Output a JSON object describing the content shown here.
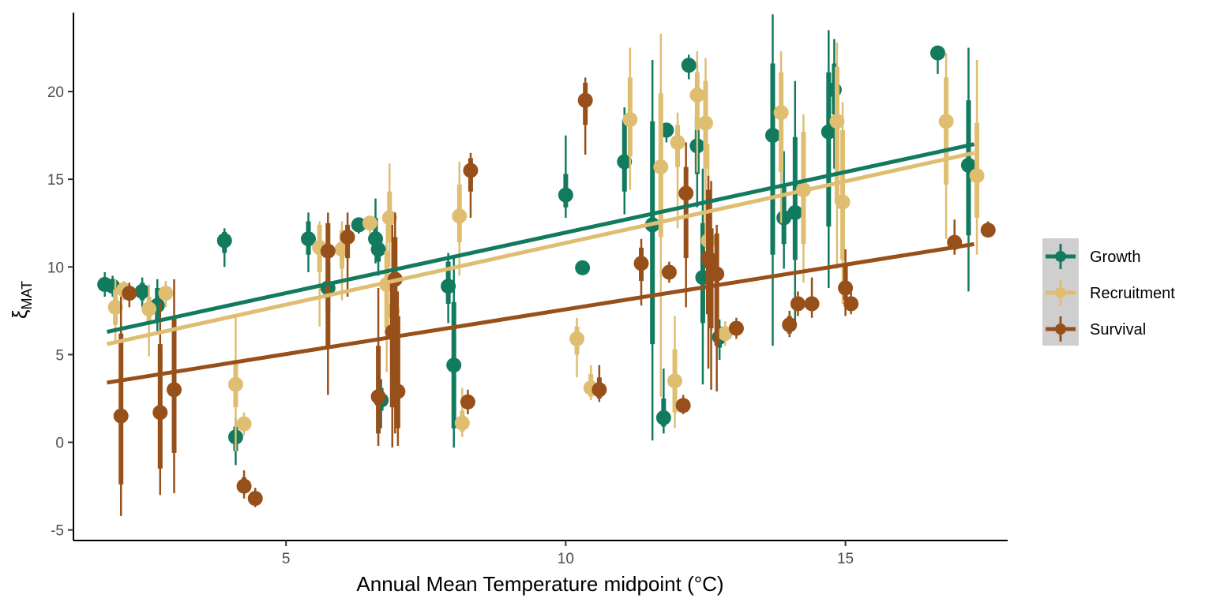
{
  "chart_data": {
    "type": "scatter",
    "title": "",
    "xlabel": "Annual Mean Temperature midpoint (°C)",
    "ylabel": "ξ",
    "ylabel_subscript": "MAT",
    "xlim": [
      1.2,
      17.9
    ],
    "ylim": [
      -5.6,
      24.5
    ],
    "x_ticks": [
      5,
      10,
      15
    ],
    "y_ticks": [
      -5,
      0,
      5,
      10,
      15,
      20
    ],
    "grid": false,
    "legend_position": "right",
    "colors": {
      "Growth": "#127a5f",
      "Recruitment": "#dfbe72",
      "Survival": "#98501a"
    },
    "legend": [
      "Growth",
      "Recruitment",
      "Survival"
    ],
    "series": [
      {
        "name": "Growth",
        "fit": {
          "x": [
            1.8,
            17.3
          ],
          "y": [
            6.3,
            17.0
          ]
        },
        "points": [
          {
            "x": 1.76,
            "y": 9.0,
            "lo66": 8.6,
            "hi66": 9.4,
            "lo95": 8.3,
            "hi95": 9.7
          },
          {
            "x": 1.9,
            "y": 8.9,
            "lo66": 8.6,
            "hi66": 9.2,
            "lo95": 8.3,
            "hi95": 9.5
          },
          {
            "x": 2.43,
            "y": 8.6,
            "lo66": 8.1,
            "hi66": 9.1,
            "lo95": 7.7,
            "hi95": 9.4
          },
          {
            "x": 2.7,
            "y": 7.8,
            "lo66": 6.9,
            "hi66": 8.8,
            "lo95": 6.3,
            "hi95": 9.3
          },
          {
            "x": 3.9,
            "y": 11.5,
            "lo66": 10.8,
            "hi66": 12.0,
            "lo95": 10.0,
            "hi95": 12.2
          },
          {
            "x": 4.1,
            "y": 0.3,
            "lo66": -0.5,
            "hi66": 0.9,
            "lo95": -1.3,
            "hi95": 1.4
          },
          {
            "x": 5.4,
            "y": 11.6,
            "lo66": 10.7,
            "hi66": 12.6,
            "lo95": 9.7,
            "hi95": 13.1
          },
          {
            "x": 5.75,
            "y": 8.8,
            "lo66": 7.5,
            "hi66": 10.3,
            "lo95": 6.5,
            "hi95": 11.0
          },
          {
            "x": 6.3,
            "y": 12.4,
            "lo66": 12.1,
            "hi66": 12.6,
            "lo95": 11.9,
            "hi95": 12.8
          },
          {
            "x": 6.6,
            "y": 11.6,
            "lo66": 10.8,
            "hi66": 12.8,
            "lo95": 10.2,
            "hi95": 13.9
          },
          {
            "x": 6.65,
            "y": 11.0,
            "lo66": 10.3,
            "hi66": 11.6,
            "lo95": 9.5,
            "hi95": 12.0
          },
          {
            "x": 6.7,
            "y": 2.4,
            "lo66": 1.8,
            "hi66": 3.1,
            "lo95": 0.8,
            "hi95": 3.6
          },
          {
            "x": 7.9,
            "y": 8.9,
            "lo66": 7.9,
            "hi66": 10.3,
            "lo95": 6.8,
            "hi95": 10.8
          },
          {
            "x": 8.0,
            "y": 4.4,
            "lo66": 0.8,
            "hi66": 8.0,
            "lo95": -0.3,
            "hi95": 10.6
          },
          {
            "x": 10.0,
            "y": 14.1,
            "lo66": 13.4,
            "hi66": 15.3,
            "lo95": 12.8,
            "hi95": 17.5
          },
          {
            "x": 10.3,
            "y": 9.95,
            "lo66": 9.75,
            "hi66": 10.15,
            "lo95": 9.6,
            "hi95": 10.3
          },
          {
            "x": 11.05,
            "y": 16.0,
            "lo66": 14.3,
            "hi66": 18.4,
            "lo95": 13.0,
            "hi95": 19.1
          },
          {
            "x": 11.55,
            "y": 12.4,
            "lo66": 5.6,
            "hi66": 18.3,
            "lo95": 0.1,
            "hi95": 21.8
          },
          {
            "x": 11.75,
            "y": 1.4,
            "lo66": 0.9,
            "hi66": 2.5,
            "lo95": 0.5,
            "hi95": 4.2
          },
          {
            "x": 11.8,
            "y": 17.8,
            "lo66": 17.4,
            "hi66": 18.0,
            "lo95": 17.1,
            "hi95": 18.2
          },
          {
            "x": 12.2,
            "y": 21.5,
            "lo66": 21.1,
            "hi66": 21.9,
            "lo95": 20.7,
            "hi95": 22.1
          },
          {
            "x": 12.35,
            "y": 16.9,
            "lo66": 15.3,
            "hi66": 18.5,
            "lo95": 13.4,
            "hi95": 21.5
          },
          {
            "x": 12.45,
            "y": 9.4,
            "lo66": 6.8,
            "hi66": 12.5,
            "lo95": 3.3,
            "hi95": 15.6
          },
          {
            "x": 12.75,
            "y": 6.0,
            "lo66": 5.4,
            "hi66": 6.6,
            "lo95": 4.7,
            "hi95": 7.0
          },
          {
            "x": 13.7,
            "y": 17.5,
            "lo66": 10.7,
            "hi66": 21.6,
            "lo95": 5.5,
            "hi95": 24.4
          },
          {
            "x": 13.9,
            "y": 12.8,
            "lo66": 11.3,
            "hi66": 14.6,
            "lo95": 9.9,
            "hi95": 16.6
          },
          {
            "x": 14.1,
            "y": 13.1,
            "lo66": 10.4,
            "hi66": 17.4,
            "lo95": 6.9,
            "hi95": 20.6
          },
          {
            "x": 14.7,
            "y": 17.7,
            "lo66": 12.3,
            "hi66": 21.1,
            "lo95": 8.8,
            "hi95": 23.5
          },
          {
            "x": 14.8,
            "y": 20.1,
            "lo66": 18.7,
            "hi66": 21.6,
            "lo95": 15.6,
            "hi95": 23.0
          },
          {
            "x": 17.2,
            "y": 15.8,
            "lo66": 11.8,
            "hi66": 19.5,
            "lo95": 8.6,
            "hi95": 22.5
          },
          {
            "x": 16.65,
            "y": 22.2,
            "lo66": 21.9,
            "hi66": 22.5,
            "lo95": 21.0,
            "hi95": 22.6
          }
        ]
      },
      {
        "name": "Recruitment",
        "fit": {
          "x": [
            1.8,
            17.3
          ],
          "y": [
            5.6,
            16.5
          ]
        },
        "points": [
          {
            "x": 1.95,
            "y": 7.7,
            "lo66": 6.7,
            "hi66": 8.7,
            "lo95": 5.6,
            "hi95": 9.3
          },
          {
            "x": 2.1,
            "y": 8.7,
            "lo66": 8.4,
            "hi66": 9.0,
            "lo95": 8.1,
            "hi95": 9.2
          },
          {
            "x": 2.55,
            "y": 7.6,
            "lo66": 6.8,
            "hi66": 8.3,
            "lo95": 4.9,
            "hi95": 9.0
          },
          {
            "x": 2.85,
            "y": 8.5,
            "lo66": 8.1,
            "hi66": 8.9,
            "lo95": 7.7,
            "hi95": 9.2
          },
          {
            "x": 4.1,
            "y": 3.3,
            "lo66": 2.0,
            "hi66": 4.7,
            "lo95": -0.5,
            "hi95": 7.2
          },
          {
            "x": 4.25,
            "y": 1.05,
            "lo66": 0.7,
            "hi66": 1.4,
            "lo95": 0.4,
            "hi95": 1.7
          },
          {
            "x": 5.6,
            "y": 11.1,
            "lo66": 9.7,
            "hi66": 12.4,
            "lo95": 6.6,
            "hi95": 12.6
          },
          {
            "x": 6.0,
            "y": 11.0,
            "lo66": 9.9,
            "hi66": 12.1,
            "lo95": 8.1,
            "hi95": 12.6
          },
          {
            "x": 6.5,
            "y": 12.5,
            "lo66": 12.2,
            "hi66": 12.7,
            "lo95": 11.9,
            "hi95": 12.9
          },
          {
            "x": 6.8,
            "y": 9.0,
            "lo66": 6.5,
            "hi66": 10.9,
            "lo95": 4.0,
            "hi95": 12.4
          },
          {
            "x": 6.85,
            "y": 12.8,
            "lo66": 11.4,
            "hi66": 14.3,
            "lo95": 10.0,
            "hi95": 15.9
          },
          {
            "x": 6.9,
            "y": 7.5,
            "lo66": 6.7,
            "hi66": 8.5,
            "lo95": 5.8,
            "hi95": 9.5
          },
          {
            "x": 8.1,
            "y": 12.9,
            "lo66": 11.4,
            "hi66": 14.7,
            "lo95": 9.5,
            "hi95": 16.0
          },
          {
            "x": 8.15,
            "y": 1.1,
            "lo66": 0.6,
            "hi66": 1.8,
            "lo95": 0.3,
            "hi95": 3.1
          },
          {
            "x": 10.2,
            "y": 5.9,
            "lo66": 5.0,
            "hi66": 6.6,
            "lo95": 3.7,
            "hi95": 7.1
          },
          {
            "x": 10.45,
            "y": 3.1,
            "lo66": 2.6,
            "hi66": 3.9,
            "lo95": 2.4,
            "hi95": 4.4
          },
          {
            "x": 11.15,
            "y": 18.4,
            "lo66": 16.3,
            "hi66": 20.8,
            "lo95": 14.4,
            "hi95": 22.5
          },
          {
            "x": 11.7,
            "y": 15.7,
            "lo66": 11.7,
            "hi66": 19.9,
            "lo95": 2.6,
            "hi95": 23.3
          },
          {
            "x": 11.95,
            "y": 3.5,
            "lo66": 1.7,
            "hi66": 5.3,
            "lo95": 0.8,
            "hi95": 7.2
          },
          {
            "x": 12.0,
            "y": 17.1,
            "lo66": 15.7,
            "hi66": 18.1,
            "lo95": 12.2,
            "hi95": 18.8
          },
          {
            "x": 12.35,
            "y": 19.8,
            "lo66": 17.8,
            "hi66": 21.1,
            "lo95": 15.4,
            "hi95": 22.3
          },
          {
            "x": 12.5,
            "y": 18.2,
            "lo66": 15.6,
            "hi66": 20.6,
            "lo95": 11.7,
            "hi95": 21.9
          },
          {
            "x": 12.55,
            "y": 11.5,
            "lo66": 9.6,
            "hi66": 14.3,
            "lo95": 4.2,
            "hi95": 17.0
          },
          {
            "x": 12.85,
            "y": 6.2,
            "lo66": 5.8,
            "hi66": 6.6,
            "lo95": 5.5,
            "hi95": 6.9
          },
          {
            "x": 13.85,
            "y": 18.8,
            "lo66": 15.4,
            "hi66": 21.1,
            "lo95": 12.5,
            "hi95": 22.3
          },
          {
            "x": 14.25,
            "y": 14.4,
            "lo66": 11.3,
            "hi66": 17.7,
            "lo95": 9.1,
            "hi95": 18.7
          },
          {
            "x": 14.85,
            "y": 18.3,
            "lo66": 13.6,
            "hi66": 21.4,
            "lo95": 9.9,
            "hi95": 22.8
          },
          {
            "x": 14.95,
            "y": 13.7,
            "lo66": 10.4,
            "hi66": 17.8,
            "lo95": 7.9,
            "hi95": 19.4
          },
          {
            "x": 16.8,
            "y": 18.3,
            "lo66": 14.7,
            "hi66": 20.8,
            "lo95": 11.6,
            "hi95": 22.2
          },
          {
            "x": 17.35,
            "y": 15.2,
            "lo66": 12.8,
            "hi66": 18.2,
            "lo95": 10.7,
            "hi95": 21.8
          }
        ]
      },
      {
        "name": "Survival",
        "fit": {
          "x": [
            1.8,
            17.3
          ],
          "y": [
            3.4,
            11.3
          ]
        },
        "points": [
          {
            "x": 2.2,
            "y": 8.5,
            "lo66": 8.1,
            "hi66": 8.8,
            "lo95": 7.7,
            "hi95": 9.1
          },
          {
            "x": 2.05,
            "y": 1.5,
            "lo66": -2.4,
            "hi66": 6.2,
            "lo95": -4.2,
            "hi95": 8.3
          },
          {
            "x": 2.75,
            "y": 1.7,
            "lo66": -1.5,
            "hi66": 5.6,
            "lo95": -3.0,
            "hi95": 8.0
          },
          {
            "x": 3.0,
            "y": 3.0,
            "lo66": -0.6,
            "hi66": 7.2,
            "lo95": -2.9,
            "hi95": 9.3
          },
          {
            "x": 4.25,
            "y": -2.5,
            "lo66": -2.9,
            "hi66": -2.0,
            "lo95": -3.2,
            "hi95": -1.6
          },
          {
            "x": 4.45,
            "y": -3.2,
            "lo66": -3.5,
            "hi66": -2.9,
            "lo95": -3.7,
            "hi95": -2.6
          },
          {
            "x": 5.75,
            "y": 10.9,
            "lo66": 5.4,
            "hi66": 12.5,
            "lo95": 2.7,
            "hi95": 13.1
          },
          {
            "x": 6.1,
            "y": 11.7,
            "lo66": 10.5,
            "hi66": 12.4,
            "lo95": 8.3,
            "hi95": 13.1
          },
          {
            "x": 6.65,
            "y": 2.6,
            "lo66": 0.5,
            "hi66": 5.5,
            "lo95": -0.2,
            "hi95": 8.8
          },
          {
            "x": 6.9,
            "y": 6.3,
            "lo66": 2.0,
            "hi66": 9.3,
            "lo95": -0.3,
            "hi95": 12.4
          },
          {
            "x": 6.95,
            "y": 9.3,
            "lo66": 2.5,
            "hi66": 11.7,
            "lo95": 0.5,
            "hi95": 13.1
          },
          {
            "x": 7.0,
            "y": 2.9,
            "lo66": 0.8,
            "hi66": 7.2,
            "lo95": -0.2,
            "hi95": 8.6
          },
          {
            "x": 8.25,
            "y": 2.3,
            "lo66": 1.9,
            "hi66": 2.7,
            "lo95": 1.6,
            "hi95": 3.0
          },
          {
            "x": 8.3,
            "y": 15.5,
            "lo66": 14.3,
            "hi66": 16.2,
            "lo95": 12.8,
            "hi95": 16.5
          },
          {
            "x": 10.35,
            "y": 19.5,
            "lo66": 18.1,
            "hi66": 20.5,
            "lo95": 16.4,
            "hi95": 20.8
          },
          {
            "x": 10.6,
            "y": 3.0,
            "lo66": 2.5,
            "hi66": 3.7,
            "lo95": 2.3,
            "hi95": 4.4
          },
          {
            "x": 11.35,
            "y": 10.2,
            "lo66": 9.2,
            "hi66": 11.1,
            "lo95": 7.8,
            "hi95": 11.6
          },
          {
            "x": 11.85,
            "y": 9.7,
            "lo66": 9.4,
            "hi66": 10.0,
            "lo95": 9.1,
            "hi95": 10.3
          },
          {
            "x": 12.1,
            "y": 2.1,
            "lo66": 1.8,
            "hi66": 2.4,
            "lo95": 1.6,
            "hi95": 2.7
          },
          {
            "x": 12.15,
            "y": 14.2,
            "lo66": 10.5,
            "hi66": 15.7,
            "lo95": 7.7,
            "hi95": 17.1
          },
          {
            "x": 12.55,
            "y": 10.5,
            "lo66": 7.3,
            "hi66": 14.4,
            "lo95": 4.2,
            "hi95": 15.2
          },
          {
            "x": 12.6,
            "y": 10.2,
            "lo66": 6.5,
            "hi66": 12.2,
            "lo95": 3.0,
            "hi95": 14.9
          },
          {
            "x": 12.7,
            "y": 9.6,
            "lo66": 5.5,
            "hi66": 11.9,
            "lo95": 2.9,
            "hi95": 12.4
          },
          {
            "x": 13.05,
            "y": 6.5,
            "lo66": 6.2,
            "hi66": 6.8,
            "lo95": 5.9,
            "hi95": 7.1
          },
          {
            "x": 14.0,
            "y": 6.7,
            "lo66": 6.2,
            "hi66": 7.2,
            "lo95": 6.0,
            "hi95": 7.5
          },
          {
            "x": 14.15,
            "y": 7.9,
            "lo66": 7.5,
            "hi66": 8.3,
            "lo95": 7.2,
            "hi95": 8.6
          },
          {
            "x": 14.4,
            "y": 7.9,
            "lo66": 7.5,
            "hi66": 8.3,
            "lo95": 7.1,
            "hi95": 9.4
          },
          {
            "x": 15.0,
            "y": 8.8,
            "lo66": 8.1,
            "hi66": 10.1,
            "lo95": 7.2,
            "hi95": 11.0
          },
          {
            "x": 15.1,
            "y": 7.9,
            "lo66": 7.6,
            "hi66": 8.3,
            "lo95": 7.3,
            "hi95": 8.6
          },
          {
            "x": 16.95,
            "y": 11.4,
            "lo66": 11.0,
            "hi66": 11.8,
            "lo95": 10.7,
            "hi95": 12.7
          },
          {
            "x": 17.55,
            "y": 12.1,
            "lo66": 11.9,
            "hi66": 12.3,
            "lo95": 11.7,
            "hi95": 12.6
          }
        ]
      }
    ]
  }
}
